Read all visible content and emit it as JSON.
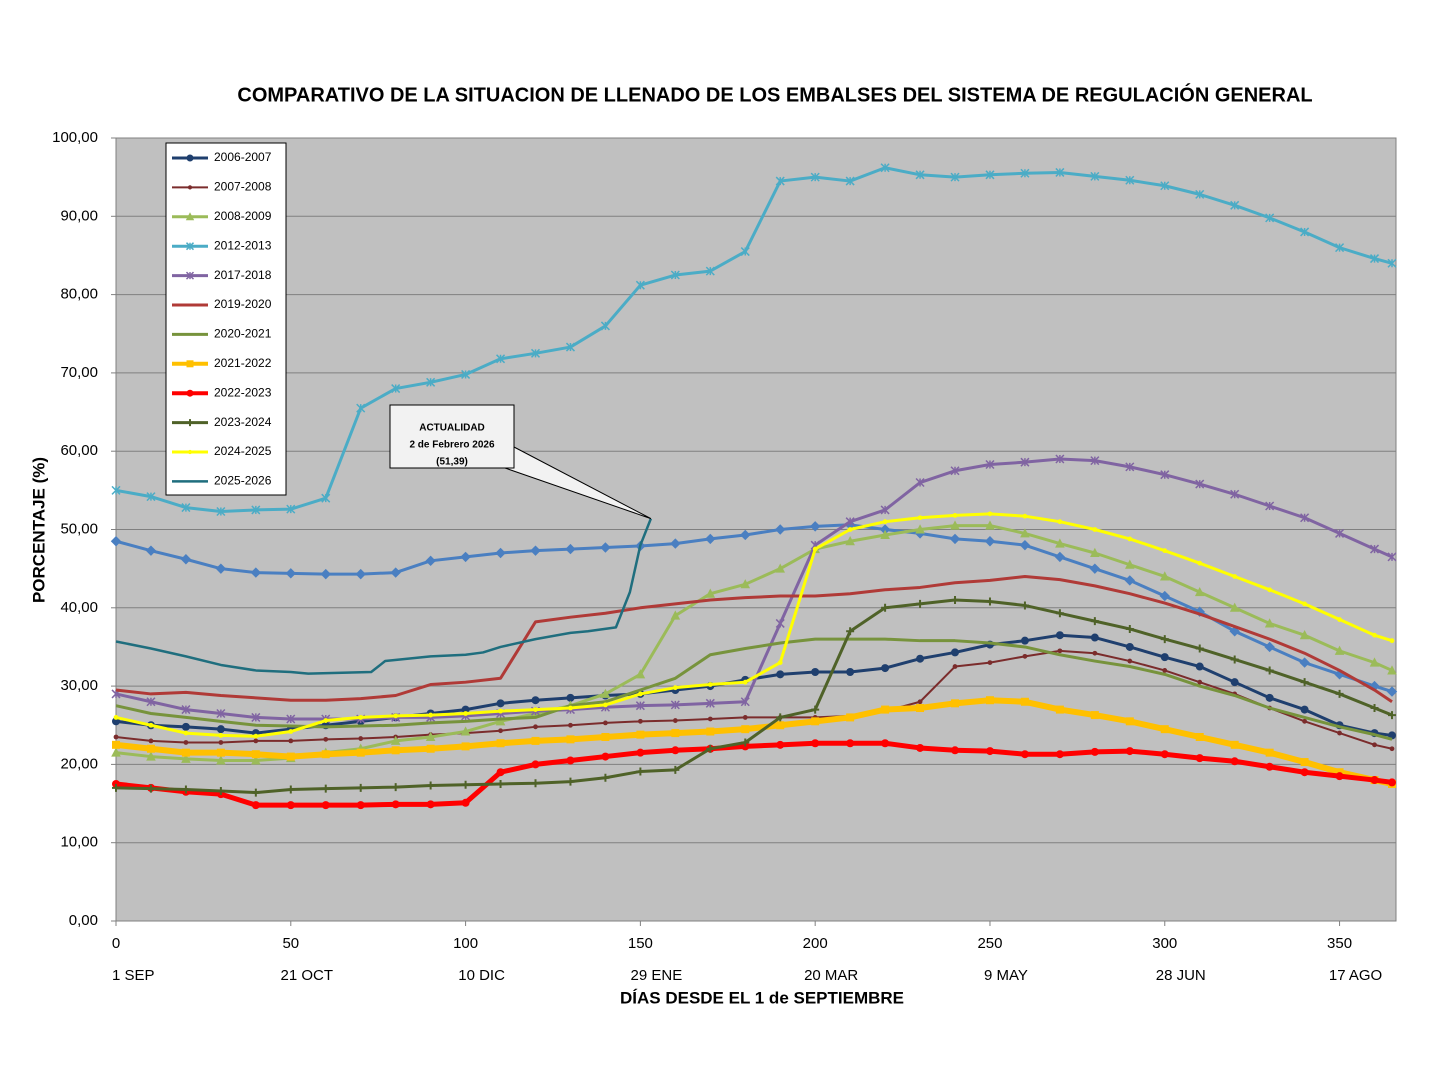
{
  "chart_data": {
    "type": "line",
    "title": "COMPARATIVO DE LA SITUACION DE LLENADO DE LOS EMBALSES DEL SISTEMA DE REGULACIÓN GENERAL",
    "y_label": "PORCENTAJE (%)",
    "x_label": "DÍAS DESDE EL 1 de SEPTIEMBRE",
    "xlim": [
      0,
      365
    ],
    "xticks": [
      0,
      50,
      100,
      150,
      200,
      250,
      300,
      350
    ],
    "x_date_labels": [
      {
        "value": 0,
        "label": "1 SEP"
      },
      {
        "value": 50,
        "label": "21 OCT"
      },
      {
        "value": 100,
        "label": "10 DIC"
      },
      {
        "value": 150,
        "label": "29 ENE"
      },
      {
        "value": 200,
        "label": "20 MAR"
      },
      {
        "value": 250,
        "label": "9 MAY"
      },
      {
        "value": 300,
        "label": "28 JUN"
      },
      {
        "value": 350,
        "label": "17 AGO"
      }
    ],
    "ylim": [
      0,
      100
    ],
    "yticks": [
      {
        "value": 0,
        "label": "0,00"
      },
      {
        "value": 10,
        "label": "10,00"
      },
      {
        "value": 20,
        "label": "20,00"
      },
      {
        "value": 30,
        "label": "30,00"
      },
      {
        "value": 40,
        "label": "40,00"
      },
      {
        "value": 50,
        "label": "50,00"
      },
      {
        "value": 60,
        "label": "60,00"
      },
      {
        "value": 70,
        "label": "70,00"
      },
      {
        "value": 80,
        "label": "80,00"
      },
      {
        "value": 90,
        "label": "90,00"
      },
      {
        "value": 100,
        "label": "100,00"
      }
    ],
    "grid": true,
    "legend": "upper left",
    "annotation": [
      "ACTUALIDAD",
      "2 de Febrero 2026",
      "(51,39)"
    ],
    "x": [
      0,
      10,
      20,
      30,
      40,
      50,
      60,
      70,
      80,
      90,
      100,
      110,
      120,
      130,
      140,
      150,
      160,
      170,
      180,
      190,
      200,
      210,
      220,
      230,
      240,
      250,
      260,
      270,
      280,
      290,
      300,
      310,
      320,
      330,
      340,
      350,
      360,
      365
    ],
    "series": [
      {
        "color": "#4a7fc1",
        "marker": "diamond",
        "line_width": 3,
        "values": [
          48.5,
          47.3,
          46.2,
          45,
          44.5,
          44.4,
          44.3,
          44.3,
          44.5,
          46,
          46.5,
          47,
          47.3,
          47.5,
          47.7,
          47.9,
          48.2,
          48.8,
          49.3,
          50,
          50.4,
          50.6,
          50,
          49.5,
          48.8,
          48.5,
          48,
          46.5,
          45,
          43.5,
          41.5,
          39.5,
          37,
          35,
          33,
          31.5,
          30,
          29.3
        ]
      },
      {
        "name": "2006-2007",
        "color": "#1f3f6e",
        "marker": "circle",
        "line_width": 3,
        "values": [
          25.5,
          25,
          24.8,
          24.5,
          24,
          24.5,
          25,
          25.5,
          26,
          26.5,
          27,
          27.8,
          28.2,
          28.5,
          28.8,
          29,
          29.5,
          30,
          30.8,
          31.5,
          31.8,
          31.8,
          32.3,
          33.5,
          34.3,
          35.3,
          35.8,
          36.5,
          36.2,
          35,
          33.7,
          32.5,
          30.5,
          28.5,
          27,
          25,
          24,
          23.7
        ]
      },
      {
        "name": "2007-2008",
        "color": "#7b2c2c",
        "marker": "dot",
        "line_width": 2,
        "values": [
          23.5,
          23,
          22.8,
          22.8,
          23,
          23,
          23.2,
          23.3,
          23.5,
          23.8,
          24,
          24.3,
          24.8,
          25,
          25.3,
          25.5,
          25.6,
          25.8,
          26,
          26,
          26,
          26.2,
          26.8,
          28,
          32.5,
          33,
          33.8,
          34.5,
          34.2,
          33.2,
          32,
          30.5,
          29,
          27.2,
          25.5,
          24,
          22.5,
          22
        ]
      },
      {
        "name": "2008-2009",
        "color": "#9bbb59",
        "marker": "triangle",
        "line_width": 3,
        "values": [
          21.5,
          21,
          20.7,
          20.5,
          20.5,
          20.8,
          21.5,
          22,
          23,
          23.5,
          24.2,
          25.5,
          26.5,
          27.5,
          29,
          31.5,
          39,
          41.8,
          43,
          45,
          47.5,
          48.5,
          49.3,
          50,
          50.5,
          50.5,
          49.5,
          48.2,
          47,
          45.5,
          44,
          42,
          40,
          38,
          36.5,
          34.5,
          33,
          32
        ]
      },
      {
        "name": "2012-2013",
        "color": "#4bacc6",
        "marker": "x",
        "line_width": 3,
        "values": [
          55,
          54.2,
          52.8,
          52.3,
          52.5,
          52.6,
          54,
          65.5,
          68,
          68.8,
          69.8,
          71.8,
          72.5,
          73.3,
          76,
          81.2,
          82.5,
          83,
          85.5,
          94.5,
          95,
          94.5,
          96.2,
          95.3,
          95,
          95.3,
          95.5,
          95.6,
          95.1,
          94.6,
          93.9,
          92.8,
          91.4,
          89.8,
          88,
          86,
          84.6,
          84
        ]
      },
      {
        "name": "2017-2018",
        "color": "#8064a2",
        "marker": "x",
        "line_width": 3,
        "values": [
          29,
          28,
          27,
          26.5,
          26,
          25.8,
          25.8,
          25.8,
          26,
          26,
          26.2,
          26.5,
          26.8,
          27,
          27.3,
          27.5,
          27.6,
          27.8,
          28,
          38,
          48,
          51,
          52.5,
          56,
          57.5,
          58.3,
          58.6,
          59,
          58.8,
          58,
          57,
          55.8,
          54.5,
          53,
          51.5,
          49.5,
          47.5,
          46.5
        ]
      },
      {
        "name": "2019-2020",
        "color": "#b03a37",
        "marker": "none",
        "line_width": 3,
        "values": [
          29.5,
          29,
          29.2,
          28.8,
          28.5,
          28.2,
          28.2,
          28.4,
          28.8,
          30.2,
          30.5,
          31,
          38.2,
          38.8,
          39.3,
          40,
          40.5,
          41,
          41.3,
          41.5,
          41.5,
          41.8,
          42.3,
          42.6,
          43.2,
          43.5,
          44,
          43.6,
          42.8,
          41.8,
          40.6,
          39.2,
          37.6,
          36,
          34.2,
          32,
          29.5,
          28
        ]
      },
      {
        "name": "2020-2021",
        "color": "#77933c",
        "marker": "none",
        "line_width": 3,
        "values": [
          27.5,
          26.5,
          26,
          25.5,
          25,
          24.9,
          24.8,
          24.9,
          25,
          25.3,
          25.5,
          25.8,
          26,
          27.5,
          28,
          29.5,
          31,
          34,
          34.8,
          35.5,
          36,
          36,
          36,
          35.8,
          35.8,
          35.5,
          35,
          34,
          33.2,
          32.5,
          31.5,
          30,
          28.8,
          27.2,
          26,
          24.8,
          23.8,
          23.2
        ]
      },
      {
        "name": "2021-2022",
        "color": "#ffc000",
        "marker": "square",
        "line_width": 6,
        "values": [
          22.5,
          22,
          21.5,
          21.5,
          21.3,
          21,
          21.3,
          21.5,
          21.8,
          22,
          22.3,
          22.7,
          23,
          23.2,
          23.5,
          23.8,
          24,
          24.2,
          24.5,
          25,
          25.5,
          26,
          27,
          27.2,
          27.8,
          28.2,
          28,
          27,
          26.3,
          25.5,
          24.5,
          23.5,
          22.5,
          21.5,
          20.3,
          19,
          18,
          17.5
        ]
      },
      {
        "name": "2022-2023",
        "color": "#ff0000",
        "marker": "circle",
        "line_width": 5,
        "values": [
          17.5,
          17,
          16.5,
          16.2,
          14.8,
          14.8,
          14.8,
          14.8,
          14.9,
          14.9,
          15.1,
          19,
          20,
          20.5,
          21,
          21.5,
          21.8,
          22,
          22.3,
          22.5,
          22.7,
          22.7,
          22.7,
          22.1,
          21.8,
          21.7,
          21.3,
          21.3,
          21.6,
          21.7,
          21.3,
          20.8,
          20.4,
          19.7,
          19,
          18.5,
          18,
          17.7
        ]
      },
      {
        "name": "2023-2024",
        "color": "#4f6228",
        "marker": "plus",
        "line_width": 3,
        "values": [
          17,
          16.9,
          16.8,
          16.6,
          16.4,
          16.8,
          16.9,
          17,
          17.1,
          17.3,
          17.4,
          17.5,
          17.6,
          17.8,
          18.3,
          19.1,
          19.3,
          22,
          22.8,
          26,
          27,
          37,
          40,
          40.5,
          41,
          40.8,
          40.3,
          39.3,
          38.3,
          37.3,
          36,
          34.8,
          33.4,
          32,
          30.5,
          29,
          27.2,
          26.3
        ]
      },
      {
        "name": "2024-2025",
        "color": "#ffff00",
        "marker": "dot",
        "line_width": 3,
        "values": [
          26,
          25,
          24,
          23.7,
          23.6,
          24.2,
          25.6,
          26,
          26.2,
          26.3,
          26.5,
          26.8,
          27,
          27.2,
          27.6,
          29,
          29.8,
          30.2,
          30.5,
          33,
          47.5,
          50,
          51,
          51.5,
          51.8,
          52,
          51.7,
          51,
          50,
          48.8,
          47.3,
          45.7,
          44,
          42.3,
          40.5,
          38.5,
          36.5,
          35.8
        ]
      },
      {
        "name": "2025-2026",
        "color": "#1f6e7e",
        "marker": "none",
        "line_width": 2.5,
        "x": [
          0,
          10,
          20,
          30,
          40,
          50,
          55,
          73,
          77,
          90,
          100,
          105,
          110,
          120,
          130,
          135,
          143,
          147,
          150,
          153
        ],
        "values": [
          35.7,
          34.8,
          33.8,
          32.7,
          32,
          31.8,
          31.6,
          31.8,
          33.2,
          33.8,
          34,
          34.3,
          35,
          36,
          36.8,
          37,
          37.5,
          42,
          48,
          51.39
        ]
      }
    ]
  }
}
